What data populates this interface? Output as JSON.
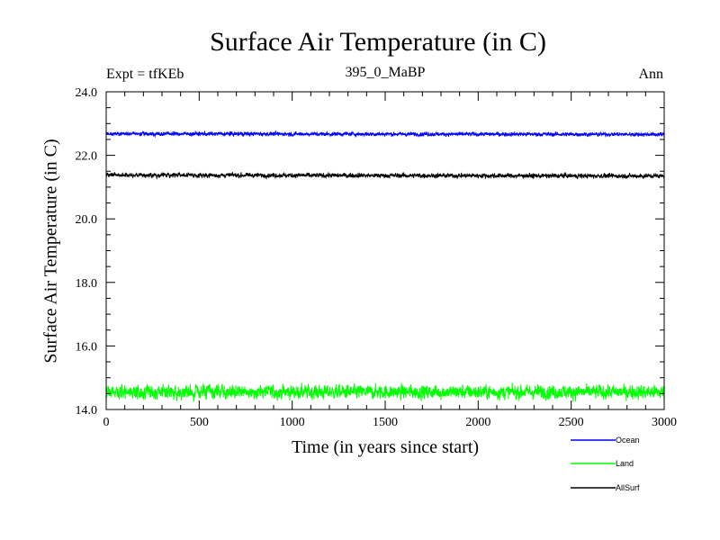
{
  "chart_data": {
    "type": "line",
    "title": "Surface Air Temperature (in C)",
    "subtitle": "395_0_MaBP",
    "annotation_left": "Expt = tfKEb",
    "annotation_right": "Ann",
    "xlabel": "Time (in years since start)",
    "ylabel": "Surface Air Temperature (in C)",
    "xlim": [
      0,
      3000
    ],
    "ylim": [
      14.0,
      24.0
    ],
    "xticks": [
      0,
      500,
      1000,
      1500,
      2000,
      2500,
      3000
    ],
    "xtick_labels": [
      "0",
      "500",
      "1000",
      "1500",
      "2000",
      "2500",
      "3000"
    ],
    "yticks": [
      14.0,
      16.0,
      18.0,
      20.0,
      22.0,
      24.0
    ],
    "ytick_labels": [
      "14.0",
      "16.0",
      "18.0",
      "20.0",
      "22.0",
      "24.0"
    ],
    "grid": false,
    "legend_position": "bottom-right outside",
    "series": [
      {
        "name": "Ocean",
        "color": "#0000ff",
        "mean": 22.68,
        "amplitude": 0.06,
        "x": [
          0,
          3000
        ],
        "y": [
          22.68,
          22.66
        ]
      },
      {
        "name": "Land",
        "color": "#00ff00",
        "mean": 14.55,
        "amplitude": 0.22,
        "x": [
          0,
          3000
        ],
        "y": [
          14.55,
          14.55
        ]
      },
      {
        "name": "AllSurf",
        "color": "#000000",
        "mean": 21.36,
        "amplitude": 0.07,
        "x": [
          0,
          3000
        ],
        "y": [
          21.38,
          21.35
        ]
      }
    ]
  }
}
